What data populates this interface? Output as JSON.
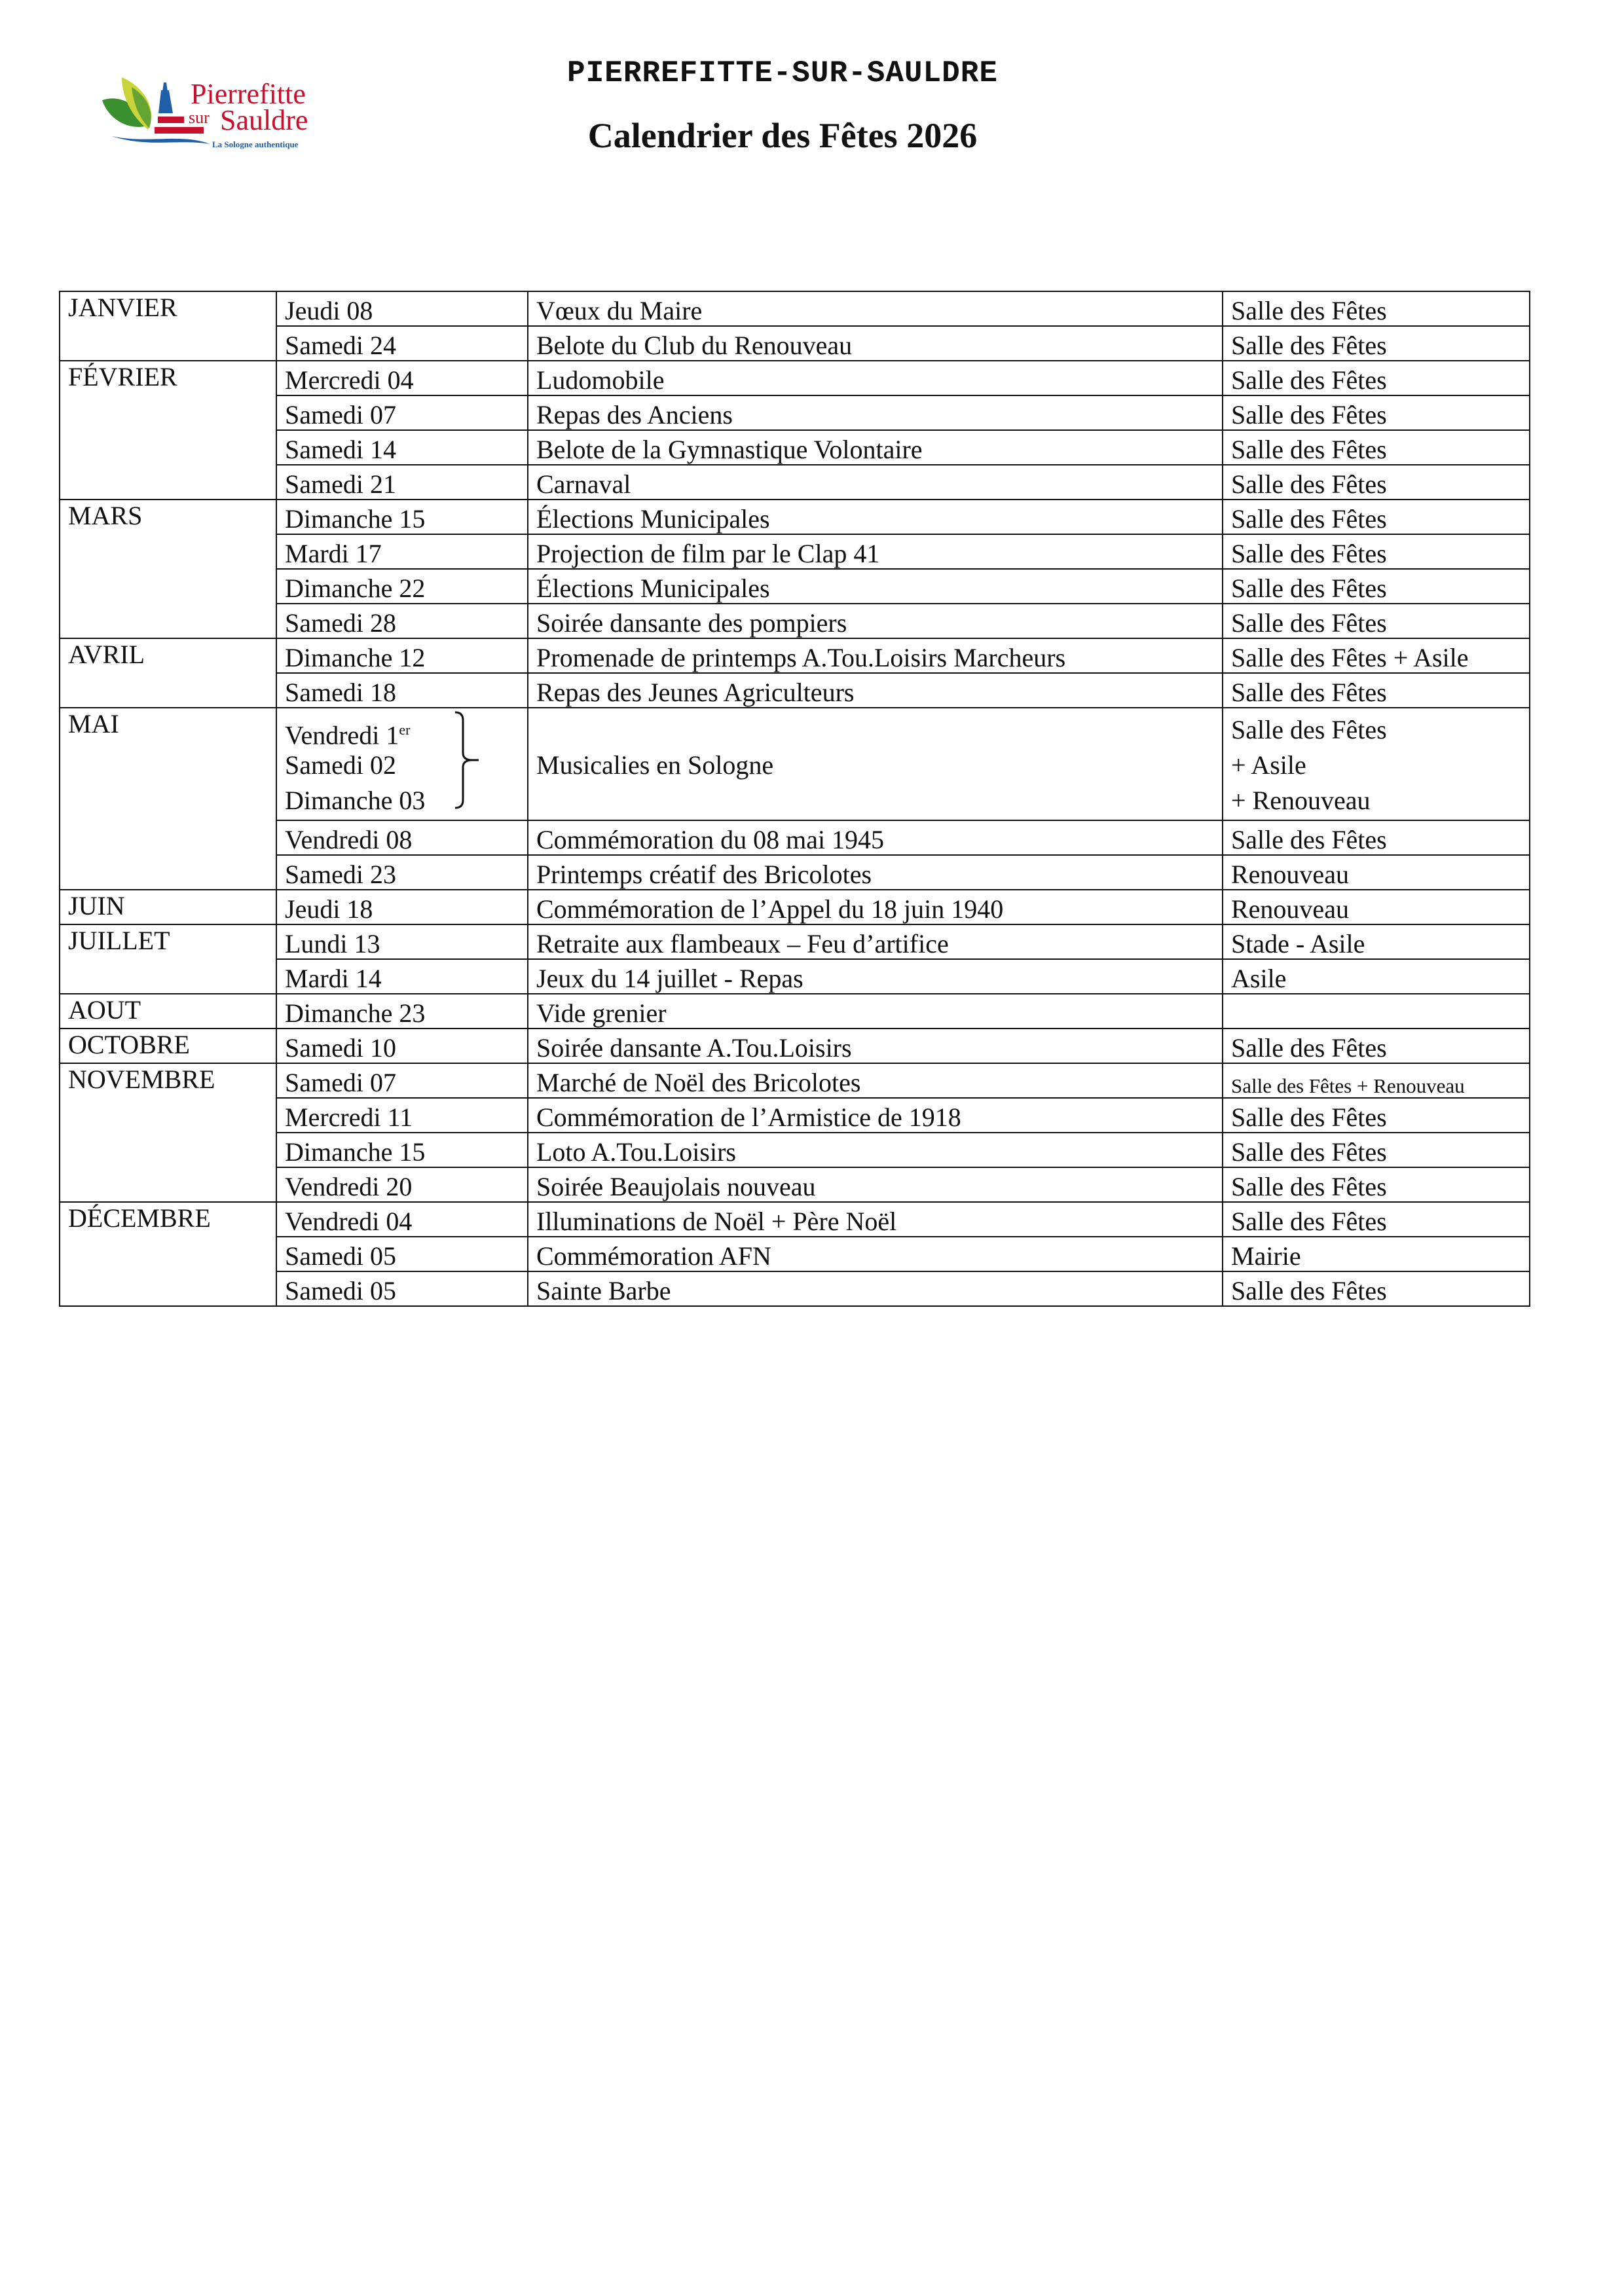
{
  "logo": {
    "line1": "Pierrefitte",
    "line2a": "sur",
    "line2b": "Sauldre",
    "tagline": "La Sologne authentique",
    "colors": {
      "red": "#c8102e",
      "green": "#3a8f2f",
      "yellow": "#c9d43a",
      "blue": "#1f5fa8"
    }
  },
  "header": {
    "town": "PIERREFITTE-SUR-SAULDRE",
    "title": "Calendrier des Fêtes 2026"
  },
  "months": [
    {
      "name": "JANVIER",
      "events": [
        {
          "day": "Jeudi 08",
          "event": "Vœux du Maire",
          "place": "Salle des Fêtes"
        },
        {
          "day": "Samedi 24",
          "event": "Belote du Club du Renouveau",
          "place": "Salle des Fêtes"
        }
      ]
    },
    {
      "name": "FÉVRIER",
      "events": [
        {
          "day": "Mercredi 04",
          "event": "Ludomobile",
          "place": "Salle des Fêtes"
        },
        {
          "day": "Samedi 07",
          "event": "Repas des Anciens",
          "place": "Salle des Fêtes"
        },
        {
          "day": "Samedi 14",
          "event": "Belote de la Gymnastique Volontaire",
          "place": "Salle des Fêtes"
        },
        {
          "day": "Samedi 21",
          "event": "Carnaval",
          "place": "Salle des Fêtes"
        }
      ]
    },
    {
      "name": "MARS",
      "events": [
        {
          "day": "Dimanche 15",
          "event": "Élections Municipales",
          "place": "Salle des Fêtes"
        },
        {
          "day": "Mardi 17",
          "event": "Projection de film par le Clap 41",
          "place": "Salle des Fêtes"
        },
        {
          "day": "Dimanche 22",
          "event": "Élections Municipales",
          "place": "Salle des Fêtes"
        },
        {
          "day": "Samedi 28",
          "event": "Soirée dansante des pompiers",
          "place": "Salle des Fêtes"
        }
      ]
    },
    {
      "name": "AVRIL",
      "events": [
        {
          "day": "Dimanche 12",
          "event": "Promenade de printemps A.Tou.Loisirs Marcheurs",
          "place": "Salle des Fêtes + Asile"
        },
        {
          "day": "Samedi 18",
          "event": "Repas des Jeunes Agriculteurs",
          "place": "Salle des Fêtes"
        }
      ]
    },
    {
      "name": "MAI",
      "events": [
        {
          "days": [
            "Vendredi 1",
            "Samedi 02",
            "Dimanche 03"
          ],
          "first_sup": "er",
          "event": "Musicalies en Sologne",
          "places": [
            "Salle des Fêtes",
            "+ Asile",
            "+ Renouveau"
          ]
        },
        {
          "day": "Vendredi 08",
          "event": "Commémoration du 08 mai 1945",
          "place": "Salle des Fêtes"
        },
        {
          "day": "Samedi 23",
          "event": "Printemps créatif des Bricolotes",
          "place": "Renouveau"
        }
      ]
    },
    {
      "name": "JUIN",
      "events": [
        {
          "day": "Jeudi 18",
          "event": "Commémoration de l’Appel du 18 juin 1940",
          "place": "Renouveau"
        }
      ]
    },
    {
      "name": "JUILLET",
      "events": [
        {
          "day": "Lundi 13",
          "event": "Retraite aux flambeaux – Feu d’artifice",
          "place": "Stade - Asile"
        },
        {
          "day": "Mardi 14",
          "event": "Jeux du 14 juillet - Repas",
          "place": "Asile"
        }
      ]
    },
    {
      "name": "AOUT",
      "events": [
        {
          "day": "Dimanche 23",
          "event": "Vide grenier",
          "place": ""
        }
      ]
    },
    {
      "name": "OCTOBRE",
      "events": [
        {
          "day": "Samedi 10",
          "event": "Soirée dansante A.Tou.Loisirs",
          "place": "Salle des Fêtes"
        }
      ]
    },
    {
      "name": "NOVEMBRE",
      "events": [
        {
          "day": "Samedi 07",
          "event": "Marché de Noël des Bricolotes",
          "place": "Salle des Fêtes + Renouveau",
          "small": true
        },
        {
          "day": "Mercredi 11",
          "event": "Commémoration de l’Armistice de 1918",
          "place": "Salle des Fêtes"
        },
        {
          "day": "Dimanche 15",
          "event": "Loto A.Tou.Loisirs",
          "place": "Salle des Fêtes"
        },
        {
          "day": "Vendredi 20",
          "event": "Soirée Beaujolais nouveau",
          "place": "Salle des Fêtes"
        }
      ]
    },
    {
      "name": "DÉCEMBRE",
      "events": [
        {
          "day": "Vendredi 04",
          "event": "Illuminations de Noël + Père Noël",
          "place": "Salle des Fêtes"
        },
        {
          "day": "Samedi 05",
          "event": "Commémoration AFN",
          "place": "Mairie"
        },
        {
          "day": "Samedi 05",
          "event": "Sainte Barbe",
          "place": "Salle des Fêtes"
        }
      ]
    }
  ]
}
